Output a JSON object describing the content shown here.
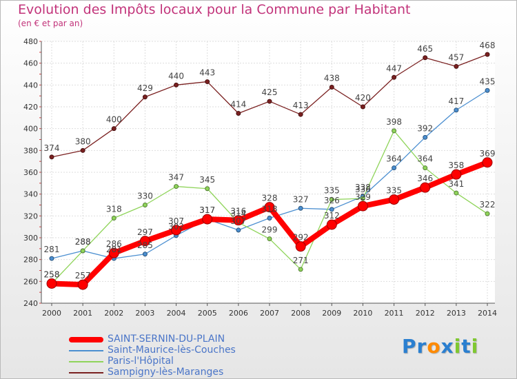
{
  "chart_data": {
    "type": "line",
    "title": "Evolution des Impôts locaux pour la Commune par Habitant",
    "subtitle": "(en € et par an)",
    "xlabel": "",
    "ylabel": "",
    "x": [
      2000,
      2001,
      2002,
      2003,
      2004,
      2005,
      2006,
      2007,
      2008,
      2009,
      2010,
      2011,
      2012,
      2013,
      2014
    ],
    "ylim": [
      240,
      480
    ],
    "yticks": [
      240,
      260,
      280,
      300,
      320,
      340,
      360,
      380,
      400,
      420,
      440,
      460,
      480
    ],
    "grid": true,
    "legend_position": "bottom-left",
    "series": [
      {
        "name": "Sampigny-lès-Maranges",
        "color": "#7a2020",
        "role": "thin",
        "values": [
          374,
          380,
          400,
          429,
          440,
          443,
          414,
          425,
          413,
          438,
          420,
          447,
          465,
          457,
          468
        ]
      },
      {
        "name": "Saint-Maurice-lès-Couches",
        "color": "#4a8ed0",
        "role": "thin",
        "values": [
          281,
          288,
          281,
          285,
          302,
          317,
          307,
          318,
          327,
          326,
          338,
          364,
          392,
          417,
          435
        ]
      },
      {
        "name": "Paris-l'Hôpital",
        "color": "#8fd45a",
        "role": "thin",
        "values": [
          258,
          288,
          318,
          330,
          347,
          345,
          314,
          299,
          271,
          335,
          336,
          398,
          364,
          341,
          322
        ]
      },
      {
        "name": "SAINT-SERNIN-DU-PLAIN",
        "color": "#ff0000",
        "role": "main",
        "values": [
          258,
          257,
          286,
          297,
          307,
          317,
          316,
          328,
          292,
          312,
          329,
          335,
          346,
          358,
          369
        ]
      }
    ],
    "point_labels": [
      {
        "series": "Sampigny-lès-Maranges",
        "text": [
          "374",
          "380",
          "400",
          "429",
          "440",
          "443",
          "414",
          "425",
          "413",
          "438",
          "420",
          "447",
          "465",
          "457",
          "468"
        ]
      },
      {
        "series": "Saint-Maurice-lès-Couches",
        "text": [
          "281",
          "288",
          "281",
          "285",
          "302",
          "317",
          "307",
          "318",
          "327",
          "326",
          "338",
          "364",
          "392",
          "417",
          "435"
        ]
      },
      {
        "series": "Paris-l'Hôpital",
        "text": [
          "258",
          "288",
          "318",
          "330",
          "347",
          "345",
          "314",
          "299",
          "271",
          "335",
          "336",
          "398",
          "364",
          "341",
          "322"
        ]
      },
      {
        "series": "SAINT-SERNIN-DU-PLAIN",
        "text": [
          "258",
          "257",
          "286",
          "297",
          "307",
          "317",
          "316",
          "328",
          "292",
          "312",
          "329",
          "335",
          "346",
          "358",
          "369"
        ]
      }
    ],
    "legend": [
      {
        "label": "SAINT-SERNIN-DU-PLAIN",
        "color": "#ff0000",
        "role": "main"
      },
      {
        "label": "Saint-Maurice-lès-Couches",
        "color": "#4a8ed0",
        "role": "thin"
      },
      {
        "label": "Paris-l'Hôpital",
        "color": "#8fd45a",
        "role": "thin"
      },
      {
        "label": "Sampigny-lès-Maranges",
        "color": "#7a2020",
        "role": "thin"
      }
    ]
  },
  "brand": {
    "logo_letters": [
      "P",
      "r",
      "o",
      "x",
      "i",
      "t",
      "i"
    ],
    "logo_colors": [
      "#2a7fd0",
      "#2a7fd0",
      "#ff8a00",
      "#2a7fd0",
      "#7fc830",
      "#2a7fd0",
      "#7fc830"
    ]
  },
  "colors": {
    "title": "#c2337a",
    "axis_text": "#333333",
    "legend_text": "#4a75c8",
    "grid": "#dddddd"
  }
}
